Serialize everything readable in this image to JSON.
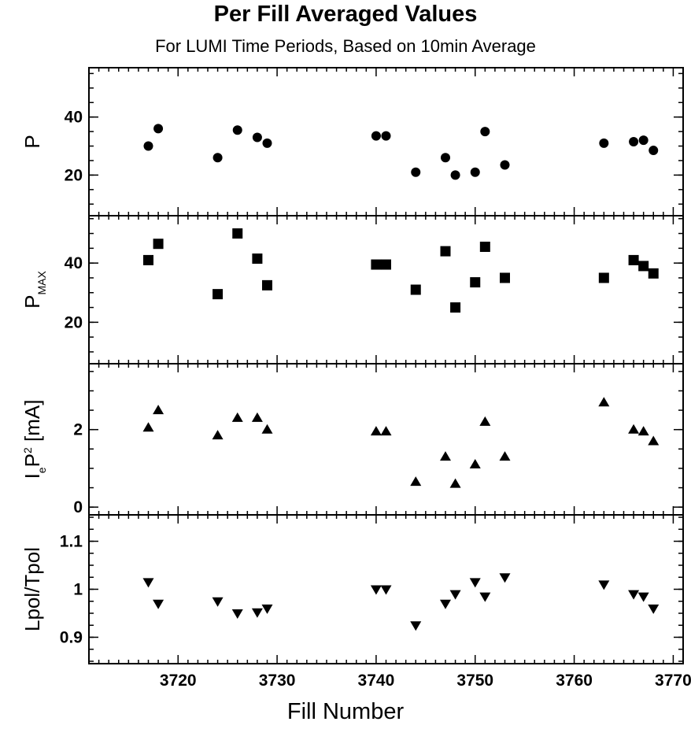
{
  "title": "Per Fill Averaged Values",
  "subtitle": "For LUMI Time Periods,  Based on 10min Average",
  "chart_data": {
    "type": "scatter",
    "title": "Per Fill Averaged Values",
    "subtitle": "For LUMI Time Periods,  Based on 10min Average",
    "xlabel": "Fill Number",
    "xlim": [
      3711,
      3771
    ],
    "xticks": [
      3720,
      3730,
      3740,
      3750,
      3760,
      3770
    ],
    "grid": false,
    "panels": [
      {
        "id": "p",
        "ylabel": "P",
        "marker": "circle",
        "ylim": [
          6,
          57
        ],
        "yticks": [
          20,
          40
        ],
        "x": [
          3717,
          3718,
          3724,
          3726,
          3728,
          3729,
          3740,
          3741,
          3744,
          3747,
          3748,
          3750,
          3751,
          3753,
          3763,
          3766,
          3767,
          3768
        ],
        "values": [
          30,
          36,
          26,
          35.5,
          33,
          31,
          33.5,
          33.5,
          21,
          26,
          20,
          21,
          35,
          23.5,
          31,
          31.5,
          32,
          28.5
        ]
      },
      {
        "id": "pmax",
        "ylabel": "P",
        "ylabel_sub": "MAX",
        "marker": "square",
        "ylim": [
          6,
          56
        ],
        "yticks": [
          20,
          40
        ],
        "x": [
          3717,
          3718,
          3724,
          3726,
          3728,
          3729,
          3740,
          3741,
          3744,
          3747,
          3748,
          3750,
          3751,
          3753,
          3763,
          3766,
          3767,
          3768
        ],
        "values": [
          41,
          46.5,
          29.5,
          50,
          41.5,
          32.5,
          39.5,
          39.5,
          31,
          44,
          25,
          33.5,
          45.5,
          35,
          35,
          41,
          39,
          36.5
        ]
      },
      {
        "id": "ip2",
        "ylabel": "I",
        "ylabel_sub": "e",
        "ylabel_main2": "P",
        "ylabel_sup": "2",
        "ylabel_unit": " [mA]",
        "marker": "triangle-up",
        "ylim": [
          -0.2,
          3.7
        ],
        "yticks": [
          0,
          2
        ],
        "x": [
          3717,
          3718,
          3724,
          3726,
          3728,
          3729,
          3740,
          3741,
          3744,
          3747,
          3748,
          3750,
          3751,
          3753,
          3763,
          3766,
          3767,
          3768
        ],
        "values": [
          2.05,
          2.5,
          1.85,
          2.3,
          2.3,
          2.0,
          1.95,
          1.95,
          0.65,
          1.3,
          0.6,
          1.1,
          2.2,
          1.3,
          2.7,
          2.0,
          1.95,
          1.7
        ]
      },
      {
        "id": "lpol",
        "ylabel": "Lpol/Tpol",
        "marker": "triangle-down",
        "ylim": [
          0.845,
          1.155
        ],
        "yticks": [
          0.9,
          1,
          1.1
        ],
        "ytick_labels": [
          "0.9",
          "1",
          "1.1"
        ],
        "x": [
          3717,
          3718,
          3724,
          3726,
          3728,
          3729,
          3740,
          3741,
          3744,
          3747,
          3748,
          3750,
          3751,
          3753,
          3763,
          3766,
          3767,
          3768
        ],
        "values": [
          1.015,
          0.97,
          0.975,
          0.95,
          0.952,
          0.96,
          1.0,
          1.0,
          0.925,
          0.97,
          0.99,
          1.015,
          0.985,
          1.025,
          1.01,
          0.99,
          0.985,
          0.96
        ]
      }
    ]
  }
}
